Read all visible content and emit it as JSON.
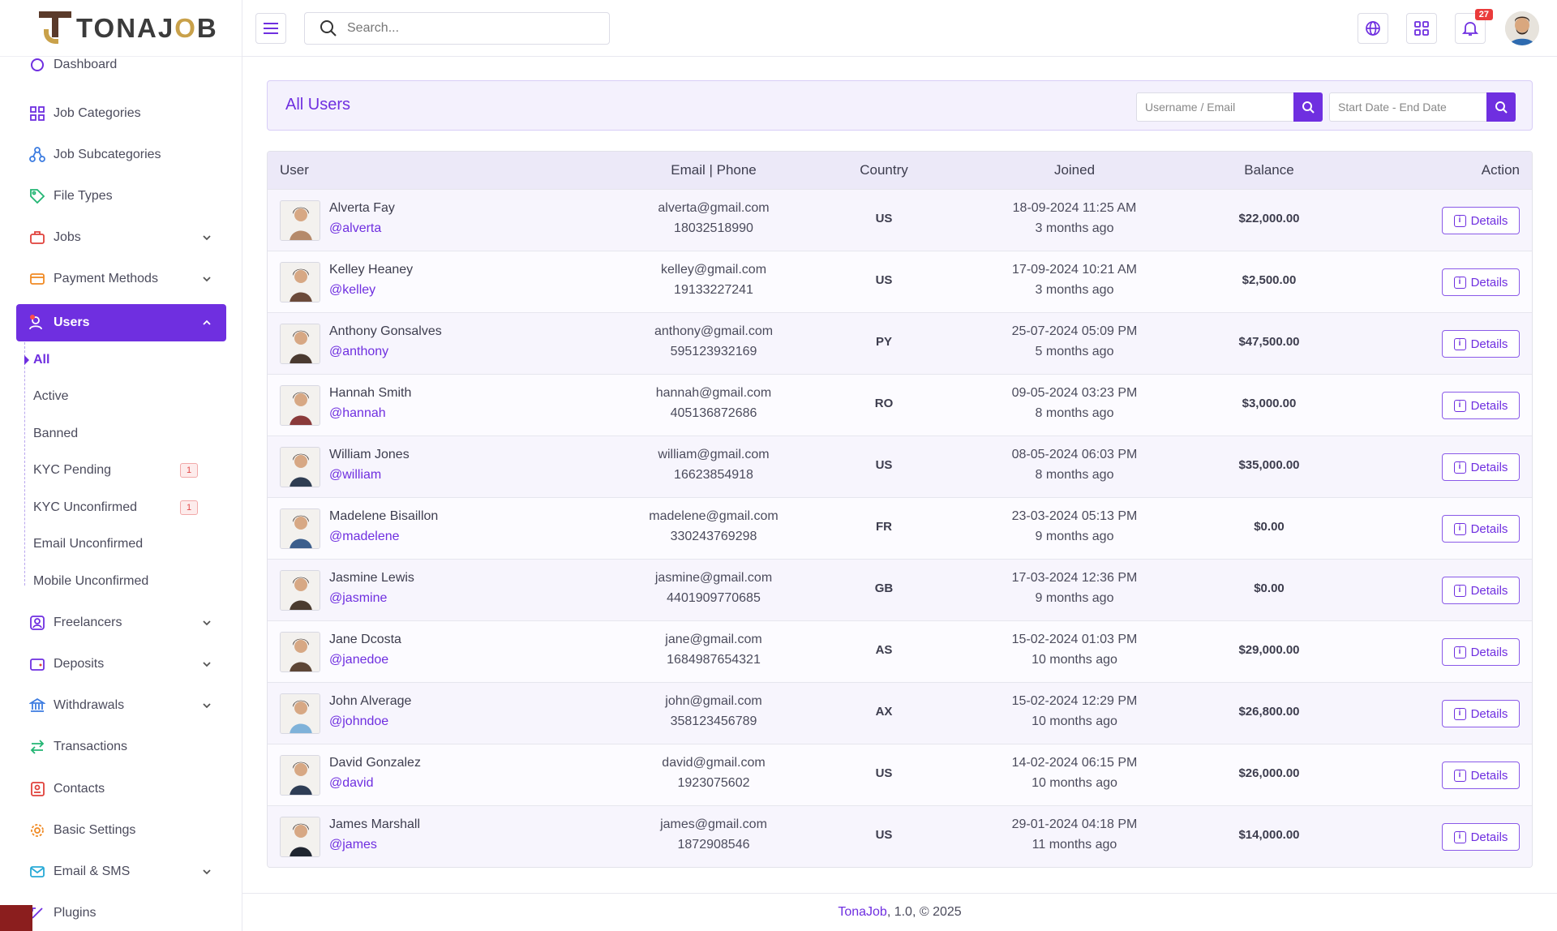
{
  "app": {
    "logo_prefix": "TONAJ",
    "logo_o": "O",
    "logo_suffix": "B"
  },
  "topbar": {
    "search_placeholder": "Search...",
    "notification_count": "27"
  },
  "sidebar": {
    "dashboard": "Dashboard",
    "job_categories": "Job Categories",
    "job_subcategories": "Job Subcategories",
    "file_types": "File Types",
    "jobs": "Jobs",
    "payment_methods": "Payment Methods",
    "users": "Users",
    "users_sub": [
      {
        "label": "All"
      },
      {
        "label": "Active"
      },
      {
        "label": "Banned"
      },
      {
        "label": "KYC Pending",
        "badge": "1"
      },
      {
        "label": "KYC Unconfirmed",
        "badge": "1"
      },
      {
        "label": "Email Unconfirmed"
      },
      {
        "label": "Mobile Unconfirmed"
      }
    ],
    "freelancers": "Freelancers",
    "deposits": "Deposits",
    "withdrawals": "Withdrawals",
    "transactions": "Transactions",
    "contacts": "Contacts",
    "basic_settings": "Basic Settings",
    "email_sms": "Email & SMS",
    "plugins": "Plugins"
  },
  "page": {
    "title": "All Users",
    "filter_user_placeholder": "Username / Email",
    "filter_date_placeholder": "Start Date - End Date"
  },
  "table": {
    "headers": {
      "user": "User",
      "contact": "Email | Phone",
      "country": "Country",
      "joined": "Joined",
      "balance": "Balance",
      "action": "Action"
    },
    "rows": [
      {
        "name": "Alverta Fay",
        "handle": "@alverta",
        "email": "alverta@gmail.com",
        "phone": "18032518990",
        "country": "US",
        "joined": "18-09-2024 11:25 AM",
        "ago": "3 months ago",
        "balance": "$22,000.00",
        "action": "Details"
      },
      {
        "name": "Kelley Heaney",
        "handle": "@kelley",
        "email": "kelley@gmail.com",
        "phone": "19133227241",
        "country": "US",
        "joined": "17-09-2024 10:21 AM",
        "ago": "3 months ago",
        "balance": "$2,500.00",
        "action": "Details"
      },
      {
        "name": "Anthony Gonsalves",
        "handle": "@anthony",
        "email": "anthony@gmail.com",
        "phone": "595123932169",
        "country": "PY",
        "joined": "25-07-2024 05:09 PM",
        "ago": "5 months ago",
        "balance": "$47,500.00",
        "action": "Details"
      },
      {
        "name": "Hannah Smith",
        "handle": "@hannah",
        "email": "hannah@gmail.com",
        "phone": "405136872686",
        "country": "RO",
        "joined": "09-05-2024 03:23 PM",
        "ago": "8 months ago",
        "balance": "$3,000.00",
        "action": "Details"
      },
      {
        "name": "William Jones",
        "handle": "@william",
        "email": "william@gmail.com",
        "phone": "16623854918",
        "country": "US",
        "joined": "08-05-2024 06:03 PM",
        "ago": "8 months ago",
        "balance": "$35,000.00",
        "action": "Details"
      },
      {
        "name": "Madelene Bisaillon",
        "handle": "@madelene",
        "email": "madelene@gmail.com",
        "phone": "330243769298",
        "country": "FR",
        "joined": "23-03-2024 05:13 PM",
        "ago": "9 months ago",
        "balance": "$0.00",
        "action": "Details"
      },
      {
        "name": "Jasmine Lewis",
        "handle": "@jasmine",
        "email": "jasmine@gmail.com",
        "phone": "4401909770685",
        "country": "GB",
        "joined": "17-03-2024 12:36 PM",
        "ago": "9 months ago",
        "balance": "$0.00",
        "action": "Details"
      },
      {
        "name": "Jane Dcosta",
        "handle": "@janedoe",
        "email": "jane@gmail.com",
        "phone": "1684987654321",
        "country": "AS",
        "joined": "15-02-2024 01:03 PM",
        "ago": "10 months ago",
        "balance": "$29,000.00",
        "action": "Details"
      },
      {
        "name": "John Alverage",
        "handle": "@johndoe",
        "email": "john@gmail.com",
        "phone": "358123456789",
        "country": "AX",
        "joined": "15-02-2024 12:29 PM",
        "ago": "10 months ago",
        "balance": "$26,800.00",
        "action": "Details"
      },
      {
        "name": "David Gonzalez",
        "handle": "@david",
        "email": "david@gmail.com",
        "phone": "1923075602",
        "country": "US",
        "joined": "14-02-2024 06:15 PM",
        "ago": "10 months ago",
        "balance": "$26,000.00",
        "action": "Details"
      },
      {
        "name": "James Marshall",
        "handle": "@james",
        "email": "james@gmail.com",
        "phone": "1872908546",
        "country": "US",
        "joined": "29-01-2024 04:18 PM",
        "ago": "11 months ago",
        "balance": "$14,000.00",
        "action": "Details"
      }
    ]
  },
  "footer": {
    "brand": "TonaJob",
    "rest": ", 1.0, © 2025"
  },
  "colors": {
    "accent": "#6f2fe0",
    "badge_red": "#ea3b3b",
    "logo_brown": "#5a3a2a",
    "logo_gold": "#c9a14a"
  }
}
